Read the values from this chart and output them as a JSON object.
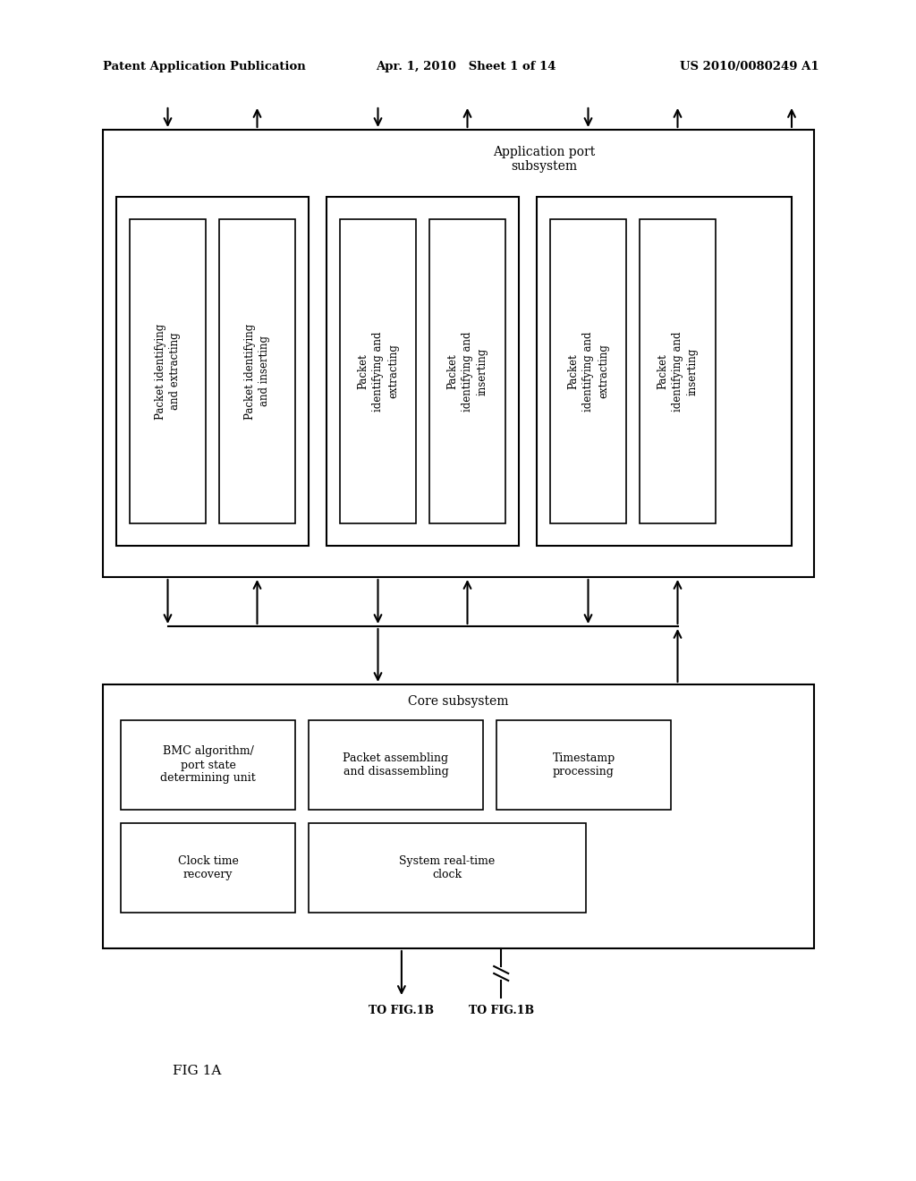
{
  "bg_color": "#ffffff",
  "header_left": "Patent Application Publication",
  "header_mid": "Apr. 1, 2010   Sheet 1 of 14",
  "header_right": "US 2010/0080249 A1",
  "fig_label": "FIG 1A"
}
